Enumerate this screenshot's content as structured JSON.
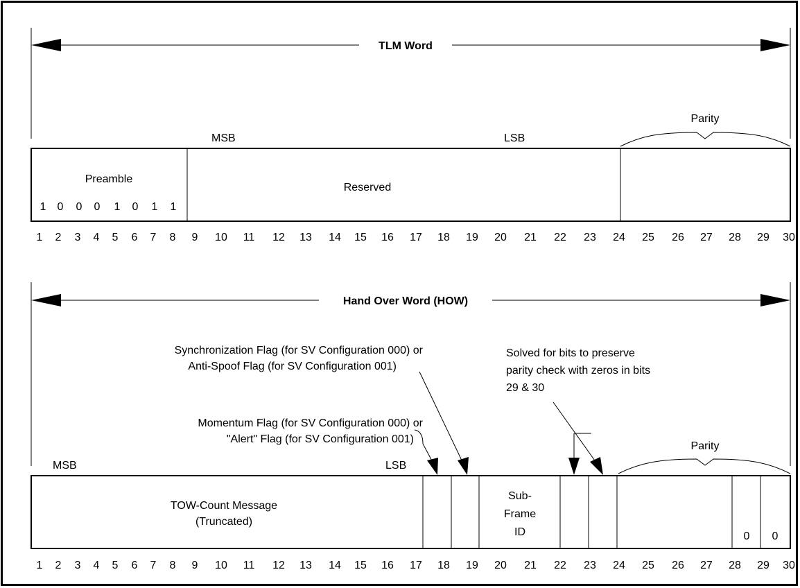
{
  "tlm": {
    "title": "TLM Word",
    "msb": "MSB",
    "lsb": "LSB",
    "parity": "Parity",
    "preamble_label": "Preamble",
    "preamble_bits": [
      "1",
      "0",
      "0",
      "0",
      "1",
      "0",
      "1",
      "1"
    ],
    "reserved_label": "Reserved",
    "bit_numbers": [
      "1",
      "2",
      "3",
      "4",
      "5",
      "6",
      "7",
      "8",
      "9",
      "10",
      "11",
      "12",
      "13",
      "14",
      "15",
      "16",
      "17",
      "18",
      "19",
      "20",
      "21",
      "22",
      "23",
      "24",
      "25",
      "26",
      "27",
      "28",
      "29",
      "30"
    ]
  },
  "how": {
    "title": "Hand Over Word (HOW)",
    "msb": "MSB",
    "lsb": "LSB",
    "parity": "Parity",
    "tow_line1": "TOW-Count Message",
    "tow_line2": "(Truncated)",
    "subframe_line1": "Sub-",
    "subframe_line2": "Frame",
    "subframe_line3": "ID",
    "zero_bit_29": "0",
    "zero_bit_30": "0",
    "sync_note_line1": "Synchronization Flag (for SV Configuration 000) or",
    "sync_note_line2": "Anti-Spoof Flag (for SV Configuration 001)",
    "momentum_note_line1": "Momentum Flag (for SV Configuration 000) or",
    "momentum_note_line2": "\"Alert\" Flag (for SV Configuration 001)",
    "solved_note_line1": "Solved for bits to preserve",
    "solved_note_line2": "parity check with zeros in bits",
    "solved_note_line3": "29 & 30",
    "bit_numbers": [
      "1",
      "2",
      "3",
      "4",
      "5",
      "6",
      "7",
      "8",
      "9",
      "10",
      "11",
      "12",
      "13",
      "14",
      "15",
      "16",
      "17",
      "18",
      "19",
      "20",
      "21",
      "22",
      "23",
      "24",
      "25",
      "26",
      "27",
      "28",
      "29",
      "30"
    ]
  }
}
